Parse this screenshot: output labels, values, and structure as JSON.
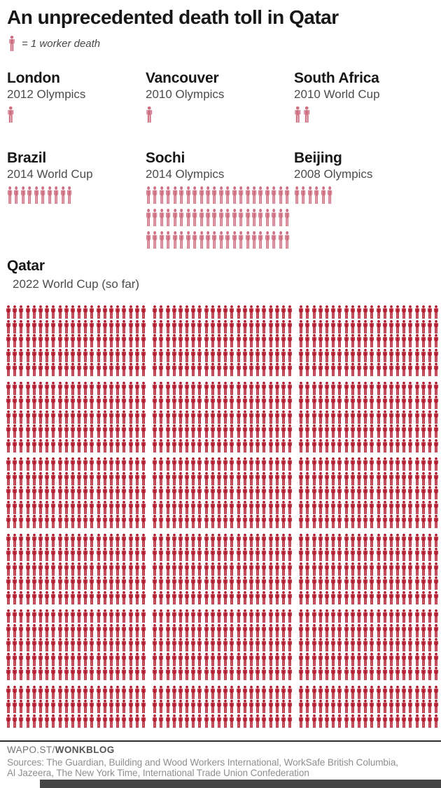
{
  "title": "An unprecedented death toll in Qatar",
  "legend": {
    "label": "= 1 worker death"
  },
  "colors": {
    "pink": "#ce6f82",
    "red": "#b01629",
    "title_text": "#171717",
    "subtitle_text": "#4c4c4c",
    "footer_text": "#8f8f8f"
  },
  "sections": [
    {
      "id": "london",
      "name": "London",
      "subtitle": "2012 Olympics",
      "count": 1,
      "color": "pink",
      "layout": {
        "size": "lg"
      }
    },
    {
      "id": "vancouver",
      "name": "Vancouver",
      "subtitle": "2010 Olympics",
      "count": 1,
      "color": "pink",
      "layout": {
        "size": "lg"
      }
    },
    {
      "id": "south_africa",
      "name": "South Africa",
      "subtitle": "2010 World Cup",
      "count": 2,
      "color": "pink",
      "layout": {
        "size": "lg"
      }
    },
    {
      "id": "brazil",
      "name": "Brazil",
      "subtitle": "2014 World Cup",
      "count": 10,
      "color": "pink",
      "layout": {
        "size": "md",
        "per_block": 10
      }
    },
    {
      "id": "sochi",
      "name": "Sochi",
      "subtitle": "2014 Olympics",
      "count": 66,
      "color": "pink",
      "layout": {
        "size": "md",
        "per_block": 22
      }
    },
    {
      "id": "beijing",
      "name": "Beijing",
      "subtitle": "2008 Olympics",
      "count": 6,
      "color": "pink",
      "layout": {
        "size": "md",
        "per_block": 6
      }
    },
    {
      "id": "qatar",
      "name": "Qatar",
      "subtitle": "2022 World Cup (so far)",
      "count": 1848,
      "color": "red",
      "layout": {
        "size": "sm",
        "per_block": 22,
        "blocks_per_row": 3,
        "group_every": 5
      }
    }
  ],
  "footer": {
    "brand_prefix": "WAPO.ST/",
    "brand_bold": "WONKBLOG",
    "sources_line1": "Sources: The Guardian, Building and Wood Workers International, WorkSafe British Columbia,",
    "sources_line2": "Al Jazeera, The New York Time, International Trade Union Confederation"
  },
  "chart_data": {
    "type": "pictogram",
    "unit": "1 figure = 1 worker death",
    "title": "An unprecedented death toll in Qatar",
    "legend": "= 1 worker death",
    "categories": [
      "London 2012 Olympics",
      "Vancouver 2010 Olympics",
      "South Africa 2010 World Cup",
      "Brazil 2014 World Cup",
      "Sochi 2014 Olympics",
      "Beijing 2008 Olympics",
      "Qatar 2022 World Cup (so far)"
    ],
    "values": [
      1,
      1,
      2,
      10,
      66,
      6,
      1848
    ],
    "series_colors": [
      "#ce6f82",
      "#ce6f82",
      "#ce6f82",
      "#ce6f82",
      "#ce6f82",
      "#ce6f82",
      "#b01629"
    ],
    "layout_hint": "isotype unit chart; Qatar block rendered as 28 rows of 3 groups x 22 figures, extra gap after every 5 rows"
  }
}
